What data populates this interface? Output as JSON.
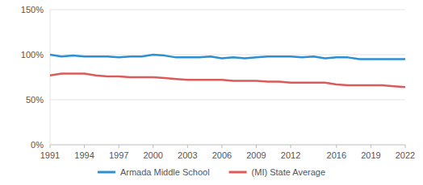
{
  "chart_data": {
    "type": "line",
    "x": [
      1991,
      1992,
      1993,
      1994,
      1995,
      1996,
      1997,
      1998,
      1999,
      2000,
      2001,
      2002,
      2003,
      2004,
      2005,
      2006,
      2007,
      2008,
      2009,
      2010,
      2011,
      2012,
      2013,
      2014,
      2015,
      2016,
      2017,
      2018,
      2019,
      2020,
      2021,
      2022
    ],
    "series": [
      {
        "name": "Armada Middle School",
        "color": "#2b8fd3",
        "values": [
          100,
          98,
          99,
          98,
          98,
          98,
          97,
          98,
          98,
          100,
          99,
          97,
          97,
          97,
          98,
          96,
          97,
          96,
          97,
          98,
          98,
          98,
          97,
          98,
          96,
          97,
          97,
          95,
          95,
          95,
          95,
          95
        ]
      },
      {
        "name": "(MI) State Average",
        "color": "#dc5a5a",
        "values": [
          77,
          79,
          79,
          79,
          77,
          76,
          76,
          75,
          75,
          75,
          74,
          73,
          72,
          72,
          72,
          72,
          71,
          71,
          71,
          70,
          70,
          69,
          69,
          69,
          69,
          67,
          66,
          66,
          66,
          66,
          65,
          64
        ]
      }
    ],
    "xlim": [
      1991,
      2022
    ],
    "xticks": [
      1991,
      1994,
      1997,
      2000,
      2003,
      2006,
      2009,
      2012,
      2016,
      2019,
      2022
    ],
    "ylim": [
      0,
      150
    ],
    "yticks": [
      {
        "value": 0,
        "label": "0%"
      },
      {
        "value": 50,
        "label": "50%"
      },
      {
        "value": 100,
        "label": "100%"
      },
      {
        "value": 150,
        "label": "150%"
      }
    ],
    "grid": true,
    "legend": "bottom"
  }
}
